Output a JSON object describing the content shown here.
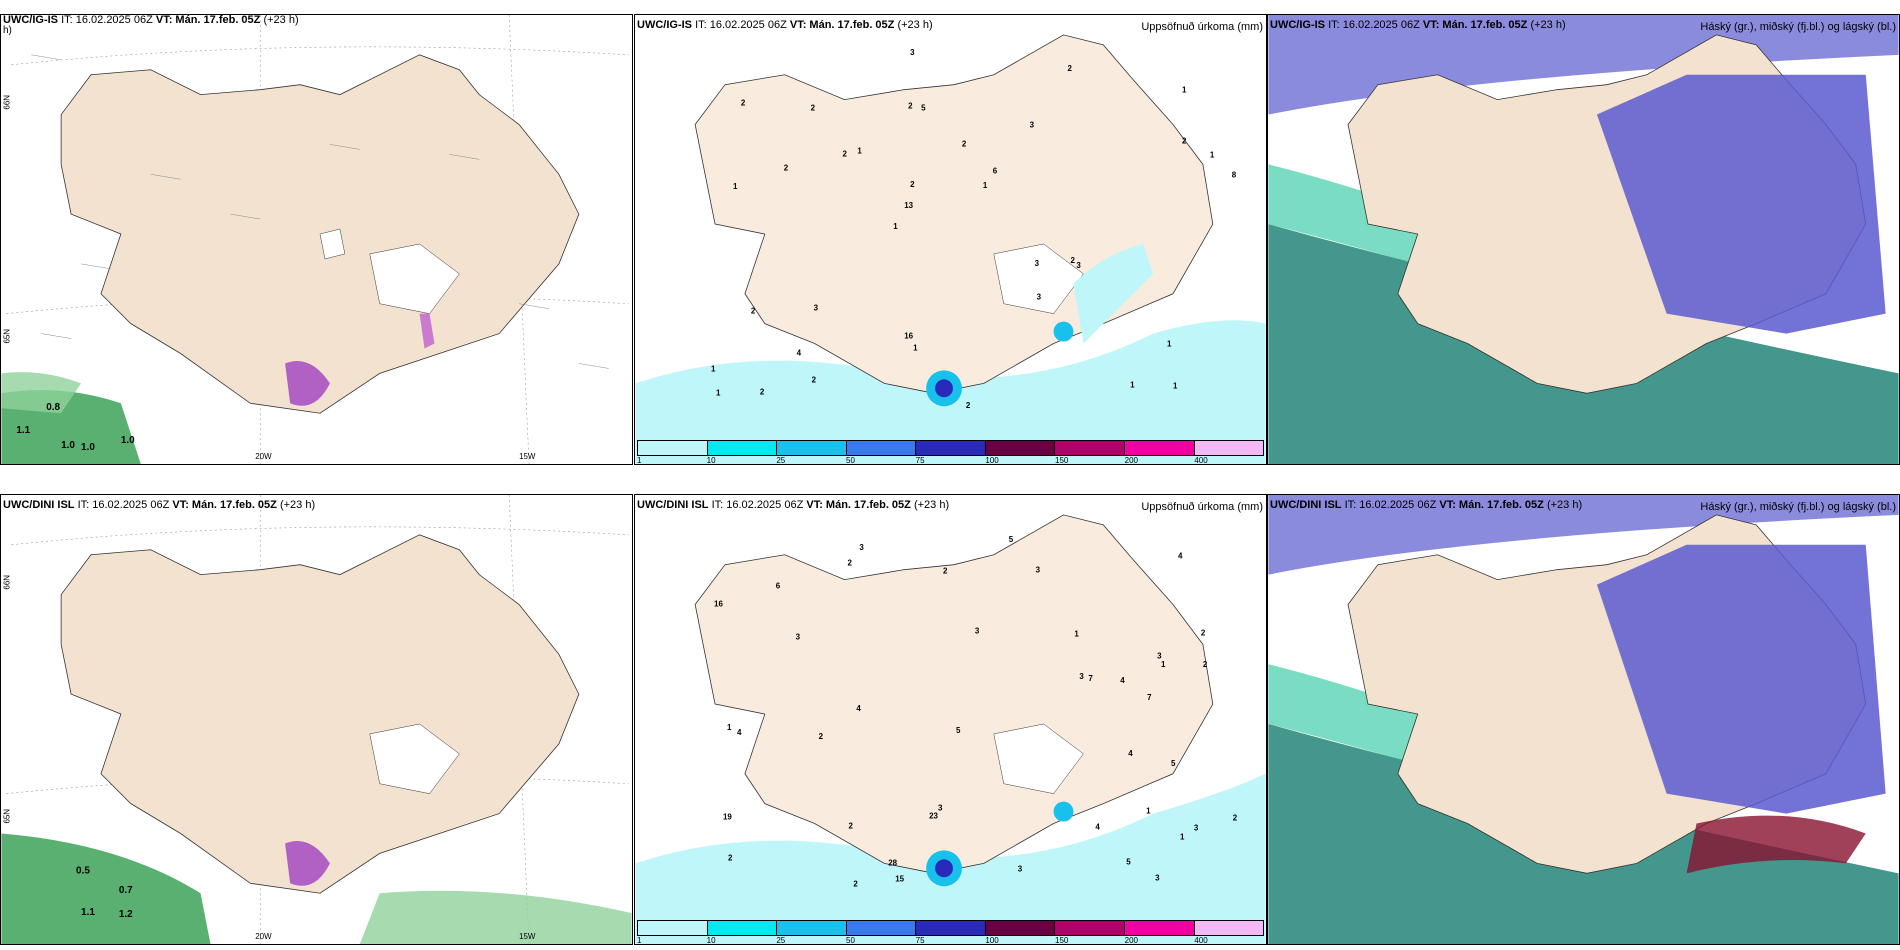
{
  "panels": {
    "tl": {
      "model": "UWC/IG-IS",
      "run": "IT: 16.02.2025 06Z",
      "vt_label": "VT: Mán. 17.feb. 05Z",
      "lead": "(+23 h)",
      "lead_cont": "h)",
      "lat_labels": [
        "66N",
        "65N"
      ],
      "lon_labels": [
        "20W",
        "15W"
      ],
      "green_values": [
        "0.8",
        "1.1",
        "1.0",
        "1.0",
        "1.0"
      ]
    },
    "tm": {
      "model": "UWC/IG-IS",
      "run": "IT: 16.02.2025 06Z",
      "vt_label": "VT: Mán. 17.feb. 05Z",
      "lead": "(+23 h)",
      "right": "Uppsöfnuð úrkoma (mm)"
    },
    "tr": {
      "model": "UWC/IG-IS",
      "run": "IT: 16.02.2025 06Z",
      "vt_label": "VT: Mán. 17.feb. 05Z",
      "lead": "(+23 h)",
      "right": "Háský (gr.), miðský (fj.bl.) og lágský (bl.)"
    },
    "bl": {
      "model": "UWC/DINI ISL",
      "run": "IT: 16.02.2025 06Z",
      "vt_label": "VT: Mán. 17.feb. 05Z",
      "lead": "(+23 h)",
      "lat_labels": [
        "66N",
        "65N"
      ],
      "lon_labels": [
        "20W",
        "15W"
      ],
      "green_values": [
        "0.5",
        "0.7",
        "1.1",
        "1.2"
      ]
    },
    "bm": {
      "model": "UWC/DINI ISL",
      "run": "IT: 16.02.2025 06Z",
      "vt_label": "VT: Mán. 17.feb. 05Z",
      "lead": "(+23 h)",
      "right": "Uppsöfnuð úrkoma (mm)"
    },
    "br": {
      "model": "UWC/DINI ISL",
      "run": "IT: 16.02.2025 06Z",
      "vt_label": "VT: Mán. 17.feb. 05Z",
      "lead": "(+23 h)",
      "right": "Háský (gr.), miðský (fj.bl.) og lágský (bl.)"
    }
  },
  "colorbar": {
    "ticks": [
      "1",
      "10",
      "25",
      "50",
      "75",
      "100",
      "150",
      "200",
      "400"
    ],
    "colors": [
      "#bff6fa",
      "#00e8f0",
      "#18c0ec",
      "#3a78f0",
      "#2a2ab8",
      "#6a0044",
      "#b0006a",
      "#f000a0",
      "#f4b8f4"
    ]
  },
  "precip_tm": [
    "1",
    "1",
    "1",
    "1",
    "3",
    "2",
    "2",
    "2",
    "2",
    "1",
    "1",
    "4",
    "5",
    "6",
    "3",
    "2",
    "3",
    "8",
    "3",
    "2",
    "13",
    "16",
    "2",
    "2",
    "2",
    "3",
    "1",
    "1",
    "2",
    "2",
    "2",
    "2",
    "3",
    "2",
    "1",
    "1",
    "1",
    "1"
  ],
  "precip_bm": [
    "1",
    "2",
    "3",
    "3",
    "2",
    "3",
    "3",
    "2",
    "4",
    "3",
    "2",
    "16",
    "7",
    "15",
    "19",
    "6",
    "1",
    "2",
    "3",
    "1",
    "1",
    "4",
    "3",
    "3",
    "28",
    "23",
    "5",
    "3",
    "1",
    "2",
    "2",
    "4",
    "2",
    "5",
    "5",
    "5",
    "7",
    "2",
    "3",
    "4",
    "4",
    "4"
  ],
  "colors": {
    "land": "#f3e2cf",
    "land_dark": "#ecd9c3",
    "sea": "#ffffff",
    "cloud_high": "#8f9199",
    "cloud_mid": "#5a5ad0",
    "cloud_low": "#22c49a",
    "green": "#2f9c4c"
  }
}
